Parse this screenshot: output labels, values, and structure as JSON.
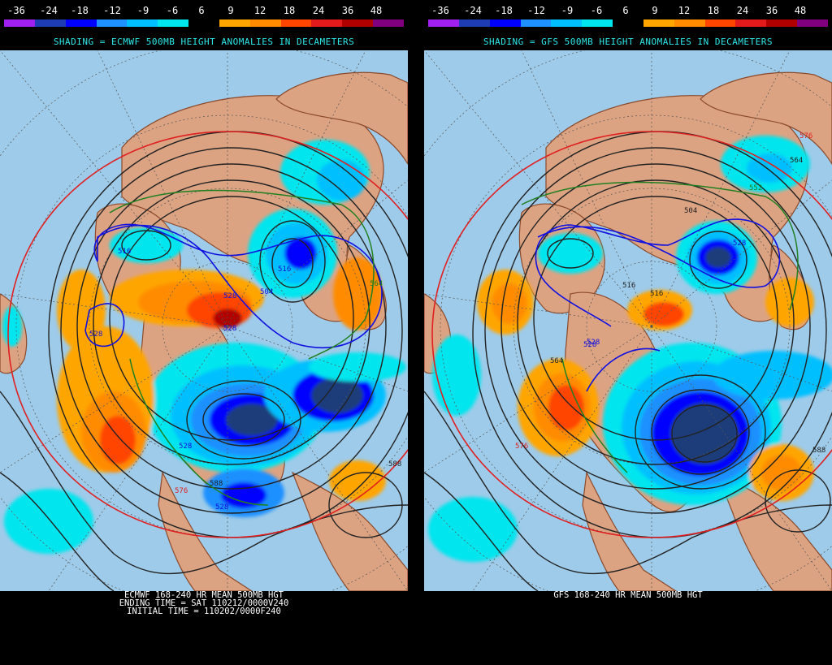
{
  "colorbar": {
    "labels": [
      "-36",
      "-24",
      "-18",
      "-12",
      "-9",
      "-6",
      "6",
      "9",
      "12",
      "18",
      "24",
      "36",
      "48"
    ],
    "colors": [
      "#a020f0",
      "#1e3cb4",
      "#0000ff",
      "#1e90ff",
      "#00bfff",
      "#00e5ee",
      "#000000",
      "#ffa500",
      "#ff8c00",
      "#ff4500",
      "#e31a1c",
      "#b00000",
      "#800080"
    ]
  },
  "left_panel": {
    "shading_title": "SHADING = ECMWF 500MB HEIGHT ANOMALIES IN DECAMETERS",
    "caption_line1": "ECMWF 168-240 HR MEAN 500MB HGT",
    "caption_line2": "ENDING TIME = SAT 110212/0000V240",
    "caption_line3": "INITIAL TIME = 110202/0000F240",
    "contour_labels": [
      "516",
      "528",
      "504",
      "528",
      "528",
      "528",
      "516",
      "564",
      "528",
      "576",
      "588",
      "588"
    ]
  },
  "right_panel": {
    "shading_title": "SHADING = GFS 500MB HEIGHT ANOMALIES IN DECAMETERS",
    "caption_line1": "GFS 168-240 HR MEAN 500MB HGT",
    "contour_labels": [
      "576",
      "564",
      "552",
      "528",
      "504",
      "516",
      "516",
      "528",
      "564",
      "576",
      "588",
      "528"
    ]
  },
  "colors": {
    "ocean": "#9ecbe9",
    "land": "#dca383",
    "border": "#8b4a2b",
    "contour": "#222222",
    "contour_528": "#1010e0",
    "contour_552": "#208020",
    "contour_576": "#e02020",
    "caption": "#ffffff",
    "title": "#2ee8e8"
  }
}
